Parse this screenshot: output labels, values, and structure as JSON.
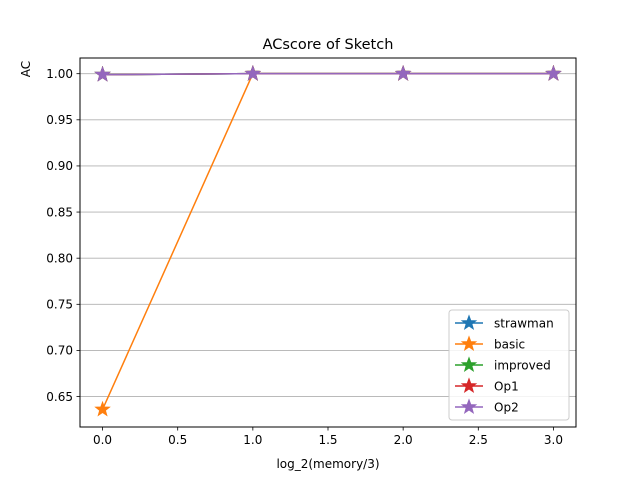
{
  "chart_data": {
    "type": "line",
    "title": "ACscore of Sketch",
    "xlabel": "log_2(memory/3)",
    "ylabel": "AC",
    "x": [
      0,
      1,
      2,
      3
    ],
    "xlim": [
      -0.15,
      3.15
    ],
    "ylim": [
      0.617,
      1.017
    ],
    "xticks": [
      0,
      0.5,
      1,
      1.5,
      2,
      2.5,
      3
    ],
    "xtick_labels": [
      "0.0",
      "0.5",
      "1.0",
      "1.5",
      "2.0",
      "2.5",
      "3.0"
    ],
    "yticks": [
      0.65,
      0.7,
      0.75,
      0.8,
      0.85,
      0.9,
      0.95,
      1.0
    ],
    "ytick_labels": [
      "0.65",
      "0.70",
      "0.75",
      "0.80",
      "0.85",
      "0.90",
      "0.95",
      "1.00"
    ],
    "grid": "y-only",
    "legend_position": "lower-right",
    "marker": "star",
    "series": [
      {
        "name": "strawman",
        "values": [
          0.999,
          1.0,
          1.0,
          1.0
        ],
        "color": "#1f77b4"
      },
      {
        "name": "basic",
        "values": [
          0.636,
          1.0,
          1.0,
          1.0
        ],
        "color": "#ff7f0e"
      },
      {
        "name": "improved",
        "values": [
          0.999,
          1.0,
          1.0,
          1.0
        ],
        "color": "#2ca02c"
      },
      {
        "name": "Op1",
        "values": [
          0.999,
          1.0,
          1.0,
          1.0
        ],
        "color": "#d62728"
      },
      {
        "name": "Op2",
        "values": [
          0.999,
          1.0,
          1.0,
          1.0
        ],
        "color": "#9467bd"
      }
    ]
  }
}
